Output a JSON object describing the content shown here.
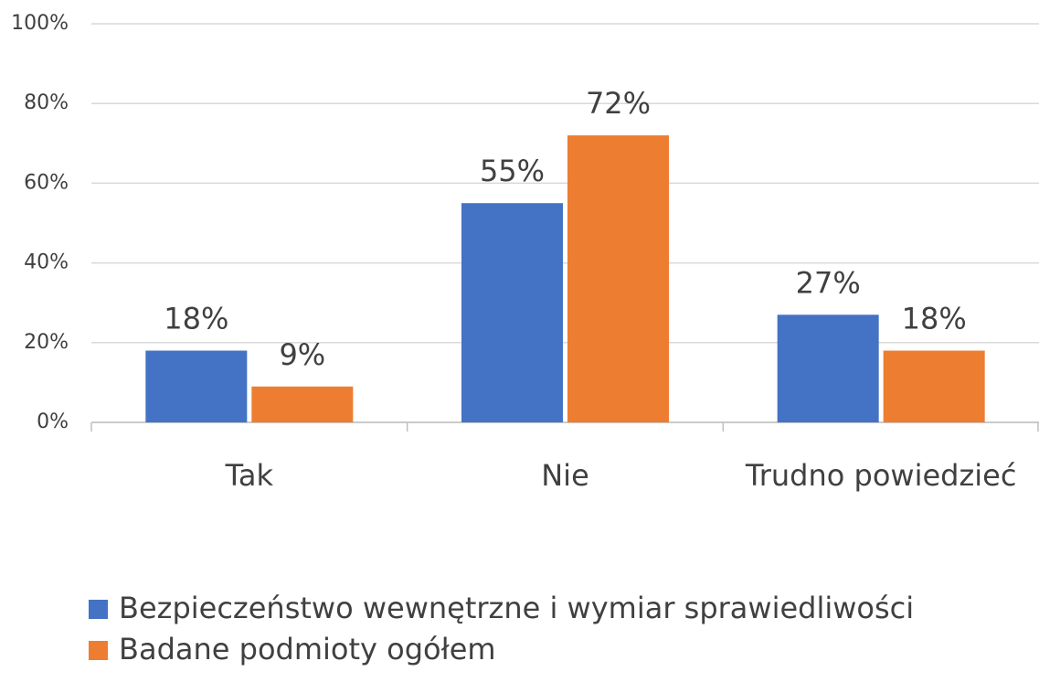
{
  "chart_data": {
    "type": "bar",
    "categories": [
      "Tak",
      "Nie",
      "Trudno powiedzieć"
    ],
    "series": [
      {
        "name": "Bezpieczeństwo wewnętrzne i wymiar sprawiedliwości",
        "color": "#4472c4",
        "values": [
          18,
          55,
          27
        ],
        "value_labels": [
          "18%",
          "55%",
          "27%"
        ]
      },
      {
        "name": "Badane podmioty ogółem",
        "color": "#ed7d31",
        "values": [
          9,
          72,
          18
        ],
        "value_labels": [
          "9%",
          "72%",
          "18%"
        ]
      }
    ],
    "ylim": [
      0,
      100
    ],
    "yticks": [
      {
        "value": 0,
        "label": "0%"
      },
      {
        "value": 20,
        "label": "20%"
      },
      {
        "value": 40,
        "label": "40%"
      },
      {
        "value": 60,
        "label": "60%"
      },
      {
        "value": 80,
        "label": "80%"
      },
      {
        "value": 100,
        "label": "100%"
      }
    ],
    "grid": true,
    "legend": "bottom"
  }
}
